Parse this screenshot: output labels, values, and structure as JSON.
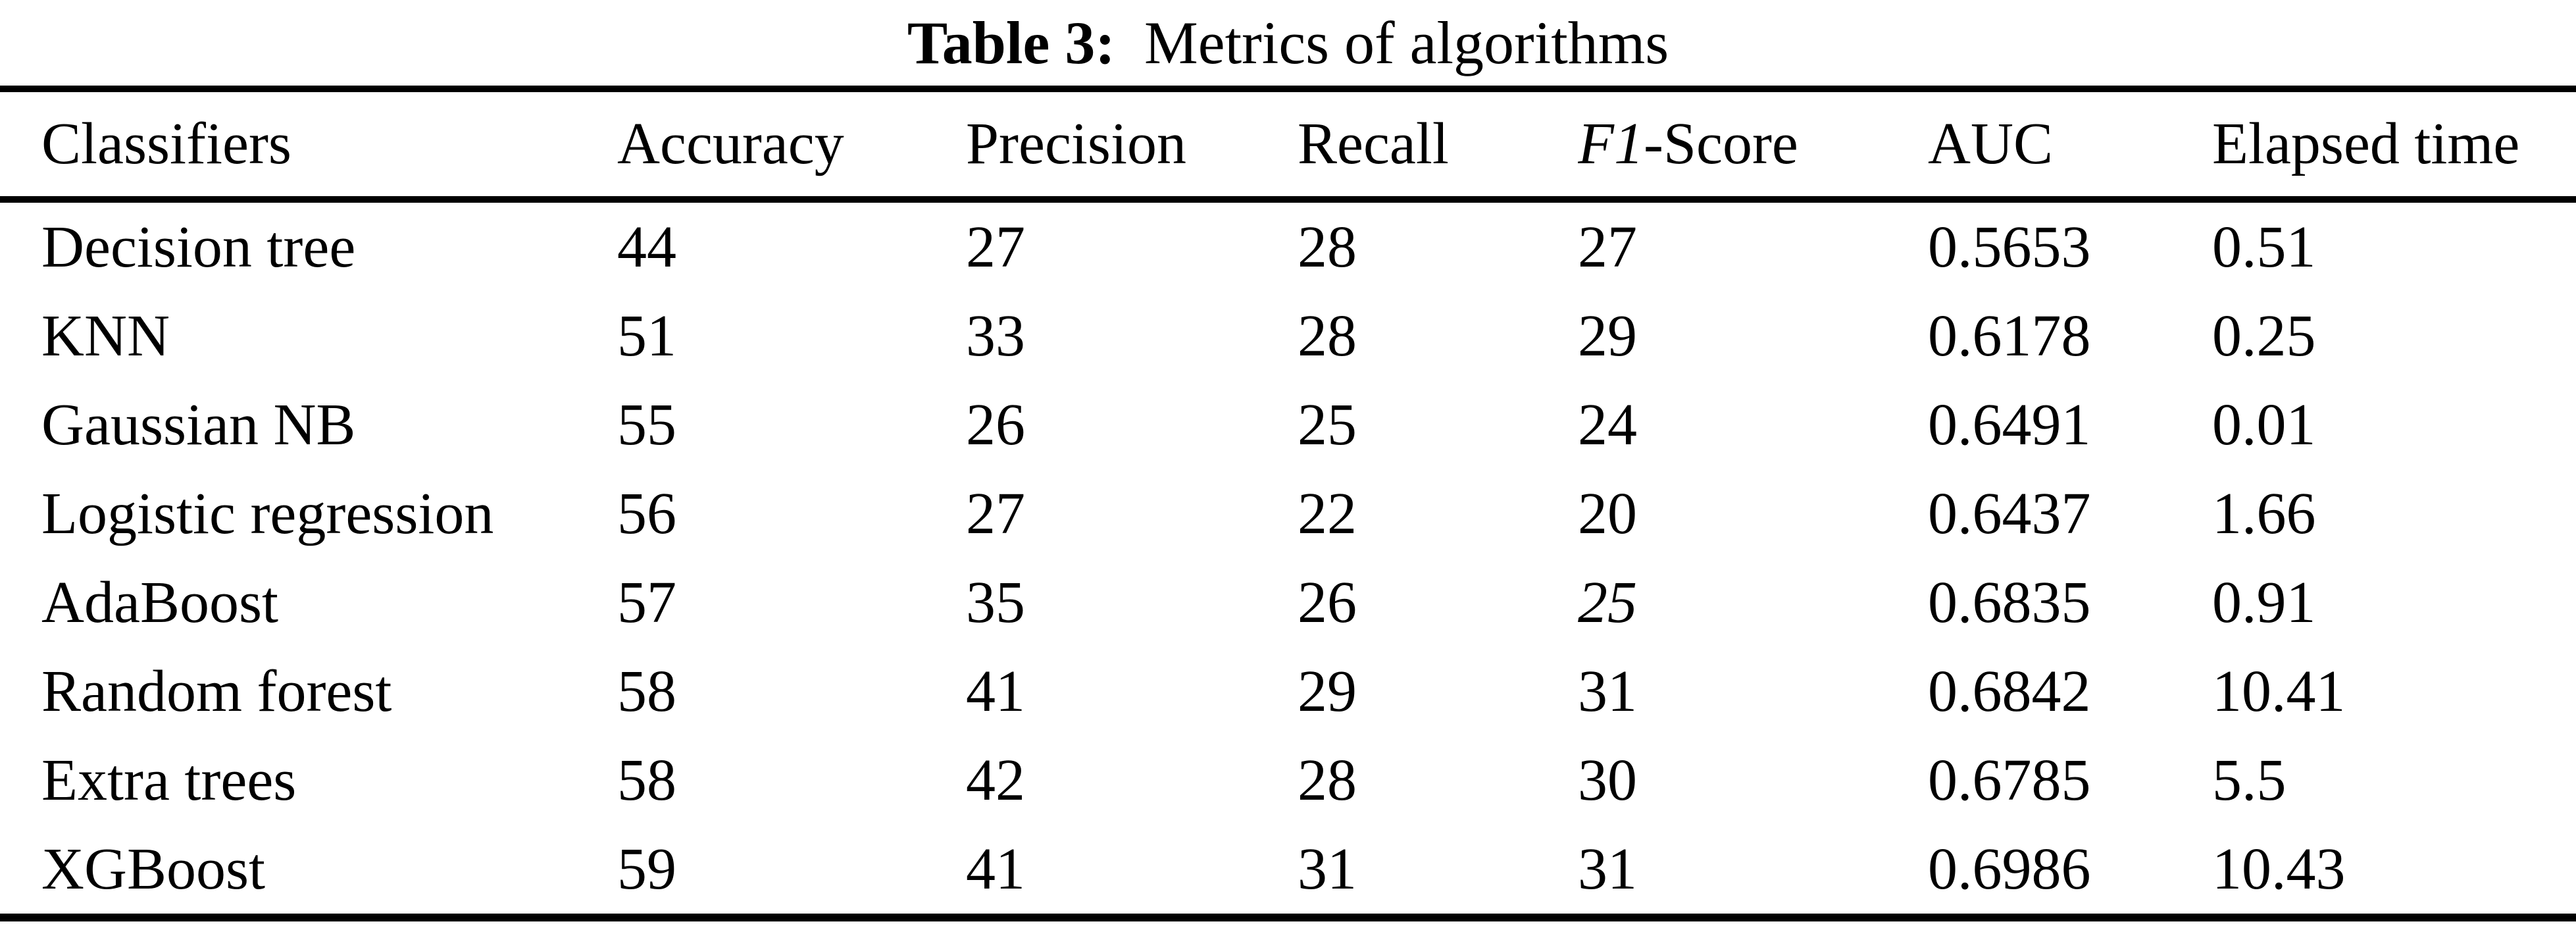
{
  "caption": {
    "label": "Table 3:",
    "text": "Metrics of algorithms"
  },
  "table": {
    "columns": [
      {
        "label": "Classifiers"
      },
      {
        "label": "Accuracy"
      },
      {
        "label": "Precision"
      },
      {
        "label": "Recall"
      },
      {
        "label": "F1-Score",
        "italic_part": "F1"
      },
      {
        "label": "AUC"
      },
      {
        "label": "Elapsed time"
      }
    ],
    "rows": [
      {
        "classifier": "Decision tree",
        "values": [
          "44",
          "27",
          "28",
          "27",
          "0.5653",
          "0.51"
        ]
      },
      {
        "classifier": "KNN",
        "values": [
          "51",
          "33",
          "28",
          "29",
          "0.6178",
          "0.25"
        ]
      },
      {
        "classifier": "Gaussian NB",
        "values": [
          "55",
          "26",
          "25",
          "24",
          "0.6491",
          "0.01"
        ]
      },
      {
        "classifier": "Logistic regression",
        "values": [
          "56",
          "27",
          "22",
          "20",
          "0.6437",
          "1.66"
        ]
      },
      {
        "classifier": "AdaBoost",
        "values": [
          "57",
          "35",
          "26",
          "25",
          "0.6835",
          "0.91"
        ],
        "italic_value_indexes": [
          3
        ]
      },
      {
        "classifier": "Random forest",
        "values": [
          "58",
          "41",
          "29",
          "31",
          "0.6842",
          "10.41"
        ]
      },
      {
        "classifier": "Extra trees",
        "values": [
          "58",
          "42",
          "28",
          "30",
          "0.6785",
          "5.5"
        ]
      },
      {
        "classifier": "XGBoost",
        "values": [
          "59",
          "41",
          "31",
          "31",
          "0.6986",
          "10.43"
        ]
      }
    ]
  }
}
